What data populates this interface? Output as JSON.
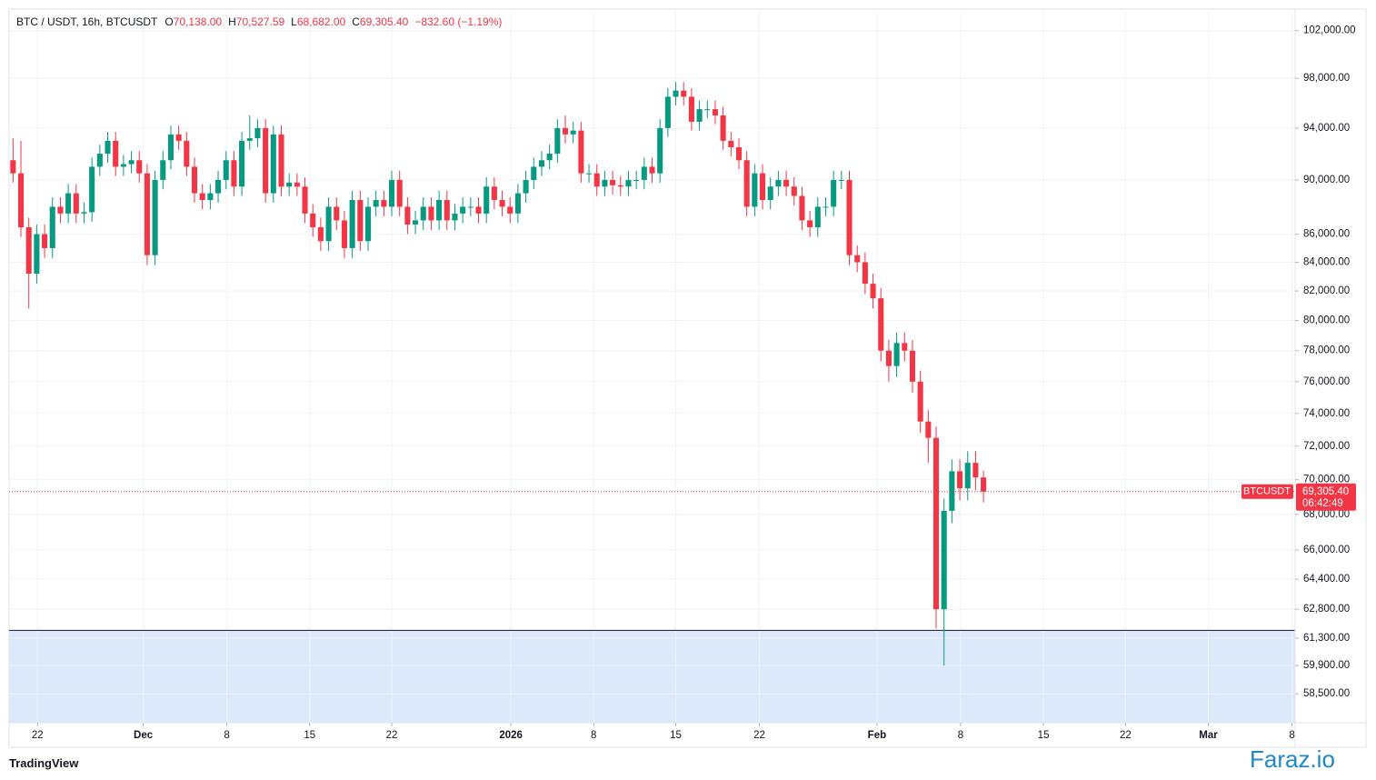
{
  "chart_data": {
    "type": "candlestick",
    "legend": {
      "symbol": "BTC / USDT, 16h, BTCUSDT",
      "o_label": "O",
      "o": "70,138.00",
      "h_label": "H",
      "h": "70,527.59",
      "l_label": "L",
      "l": "68,682.00",
      "c_label": "C",
      "c": "69,305.40",
      "change": "−832.60 (−1.19%)"
    },
    "price_tag": {
      "symbol": "BTCUSDT",
      "price": "69,305.40",
      "countdown": "06:42:49"
    },
    "footer": {
      "brand": "TradingView",
      "watermark": "Faraz.io"
    },
    "up_color": "#089981",
    "down_color": "#f23645",
    "log_scale": true,
    "grid": true,
    "level": 61700,
    "zone_color": "#dce9fb",
    "ylim": [
      57100,
      103700
    ],
    "yticks": [
      {
        "value": 102000,
        "label": "102,000.00"
      },
      {
        "value": 98000,
        "label": "98,000.00"
      },
      {
        "value": 94000,
        "label": "94,000.00"
      },
      {
        "value": 90000,
        "label": "90,000.00"
      },
      {
        "value": 86000,
        "label": "86,000.00"
      },
      {
        "value": 84000,
        "label": "84,000.00"
      },
      {
        "value": 82000,
        "label": "82,000.00"
      },
      {
        "value": 80000,
        "label": "80,000.00"
      },
      {
        "value": 78000,
        "label": "78,000.00"
      },
      {
        "value": 76000,
        "label": "76,000.00"
      },
      {
        "value": 74000,
        "label": "74,000.00"
      },
      {
        "value": 72000,
        "label": "72,000.00"
      },
      {
        "value": 70000,
        "label": "70,000.00"
      },
      {
        "value": 68000,
        "label": "68,000.00"
      },
      {
        "value": 66000,
        "label": "66,000.00"
      },
      {
        "value": 64400,
        "label": "64,400.00"
      },
      {
        "value": 62800,
        "label": "62,800.00"
      },
      {
        "value": 61300,
        "label": "61,300.00"
      },
      {
        "value": 59900,
        "label": "59,900.00"
      },
      {
        "value": 58500,
        "label": "58,500.00"
      }
    ],
    "xlim": [
      -0.5,
      162.5
    ],
    "xticks": [
      {
        "value": 3.1,
        "label": "22"
      },
      {
        "value": 16.5,
        "label": "Dec"
      },
      {
        "value": 27.1,
        "label": "8"
      },
      {
        "value": 37.6,
        "label": "15"
      },
      {
        "value": 48.0,
        "label": "22"
      },
      {
        "value": 63.1,
        "label": "2026"
      },
      {
        "value": 73.6,
        "label": "8"
      },
      {
        "value": 84.0,
        "label": "15"
      },
      {
        "value": 94.6,
        "label": "22"
      },
      {
        "value": 109.5,
        "label": "Feb"
      },
      {
        "value": 120.1,
        "label": "8"
      },
      {
        "value": 130.6,
        "label": "15"
      },
      {
        "value": 141.0,
        "label": "22"
      },
      {
        "value": 151.5,
        "label": "Mar"
      },
      {
        "value": 162.1,
        "label": "8"
      }
    ],
    "open": [
      91500,
      90500,
      86500,
      83200,
      86000,
      85000,
      88000,
      87500,
      89000,
      87500,
      87600,
      91000,
      92000,
      93000,
      91000,
      91200,
      91500,
      90500,
      84500,
      90000,
      91500,
      93500,
      93000,
      91000,
      89000,
      88500,
      89000,
      90000,
      91500,
      89500,
      93000,
      93200,
      94000,
      89000,
      93500,
      89500,
      89800,
      89500,
      87500,
      86500,
      85500,
      88000,
      87000,
      85000,
      88500,
      85500,
      88000,
      88500,
      88000,
      90000,
      88000,
      86700,
      87000,
      88000,
      87000,
      88500,
      87000,
      87500,
      88000,
      88000,
      87500,
      89500,
      88500,
      88000,
      87500,
      89000,
      90000,
      91000,
      91500,
      92000,
      94000,
      93500,
      93800,
      90500,
      90500,
      89500,
      90000,
      89600,
      89500,
      90000,
      90000,
      91000,
      90500,
      94000,
      96500,
      97000,
      96500,
      94500,
      95500,
      95500,
      95000,
      93000,
      92500,
      91500,
      88000,
      90500,
      88500,
      89500,
      90000,
      89500,
      88800,
      87000,
      86500,
      88000,
      88000,
      90000,
      90000,
      84500,
      84000,
      82500,
      81500,
      78000,
      77000,
      78500,
      78000,
      76000,
      73500,
      72500,
      62800,
      68200,
      70500,
      69500,
      71000,
      70138
    ],
    "high": [
      93200,
      93000,
      87200,
      86700,
      86700,
      88700,
      88700,
      89700,
      89700,
      88300,
      91700,
      92700,
      93700,
      93700,
      91900,
      92200,
      92200,
      91200,
      90700,
      92200,
      94200,
      94200,
      93700,
      91700,
      89700,
      89700,
      90700,
      92200,
      92200,
      93700,
      95000,
      94700,
      94700,
      94200,
      94200,
      90500,
      90500,
      90200,
      88200,
      87200,
      88700,
      88700,
      87700,
      89200,
      89200,
      88700,
      89200,
      89200,
      90700,
      90700,
      88700,
      87700,
      88700,
      88700,
      89200,
      89200,
      88200,
      88700,
      88700,
      88700,
      90200,
      90200,
      89200,
      88700,
      89700,
      90700,
      91700,
      92200,
      92700,
      94700,
      95000,
      94500,
      94500,
      91200,
      91200,
      90700,
      90700,
      90300,
      90700,
      90700,
      91700,
      91700,
      94700,
      97200,
      97700,
      97700,
      97200,
      96200,
      96200,
      96200,
      95700,
      93700,
      93200,
      92200,
      91200,
      91200,
      90200,
      90700,
      90700,
      90200,
      89500,
      87700,
      88700,
      88700,
      90700,
      90700,
      90700,
      85200,
      84700,
      83200,
      82200,
      78700,
      79200,
      79200,
      78700,
      76700,
      74200,
      73200,
      68900,
      71200,
      71200,
      71700,
      71700,
      70527.59
    ],
    "low": [
      89800,
      85800,
      80800,
      82500,
      84300,
      84300,
      86800,
      86800,
      86800,
      86800,
      86900,
      90300,
      91300,
      90300,
      90300,
      90500,
      89800,
      83800,
      83800,
      89300,
      90800,
      92300,
      90300,
      88300,
      87800,
      87800,
      88300,
      89300,
      88800,
      88800,
      92300,
      92500,
      88300,
      88300,
      88800,
      88800,
      88800,
      86800,
      85800,
      84800,
      84800,
      86300,
      84300,
      84300,
      84800,
      84800,
      87300,
      87300,
      87300,
      87300,
      86000,
      86000,
      86300,
      86300,
      86300,
      86300,
      86300,
      86800,
      87300,
      86800,
      86800,
      87800,
      87300,
      86800,
      86800,
      88300,
      89300,
      90300,
      90800,
      91300,
      92800,
      92800,
      89800,
      89800,
      88800,
      88800,
      88900,
      88800,
      88800,
      89300,
      89300,
      89800,
      89800,
      93300,
      95800,
      95800,
      93800,
      93800,
      94800,
      94300,
      92300,
      91800,
      90800,
      87300,
      87300,
      87800,
      87800,
      88800,
      88800,
      88100,
      86300,
      85800,
      85800,
      87300,
      87300,
      89300,
      83800,
      83300,
      81800,
      80800,
      77300,
      76000,
      76300,
      77300,
      75300,
      72800,
      71000,
      61800,
      59900,
      67500,
      68800,
      68800,
      69400,
      68682
    ],
    "close": [
      90500,
      86500,
      83200,
      86000,
      85000,
      88000,
      87500,
      89000,
      87500,
      87600,
      91000,
      92000,
      93000,
      91000,
      91200,
      91500,
      90500,
      84500,
      90000,
      91500,
      93500,
      93000,
      91000,
      89000,
      88500,
      89000,
      90000,
      91500,
      89500,
      93000,
      93200,
      94000,
      89000,
      93500,
      89500,
      89800,
      89500,
      87500,
      86500,
      85500,
      88000,
      87000,
      85000,
      88500,
      85500,
      88000,
      88500,
      88000,
      90000,
      88000,
      86700,
      87000,
      88000,
      87000,
      88500,
      87000,
      87500,
      88000,
      88000,
      87500,
      89500,
      88500,
      88000,
      87500,
      89000,
      90000,
      91000,
      91500,
      92000,
      94000,
      93500,
      93800,
      90500,
      90500,
      89500,
      90000,
      89600,
      89500,
      90000,
      90000,
      91000,
      90500,
      94000,
      96500,
      97000,
      96500,
      94500,
      95500,
      95500,
      95000,
      93000,
      92500,
      91500,
      88000,
      90500,
      88500,
      89500,
      90000,
      89500,
      88800,
      87000,
      86500,
      88000,
      88000,
      90000,
      90000,
      84500,
      84000,
      82500,
      81500,
      78000,
      77000,
      78500,
      78000,
      76000,
      73500,
      72500,
      62800,
      68200,
      70500,
      69500,
      71000,
      70138,
      69305.4
    ]
  }
}
